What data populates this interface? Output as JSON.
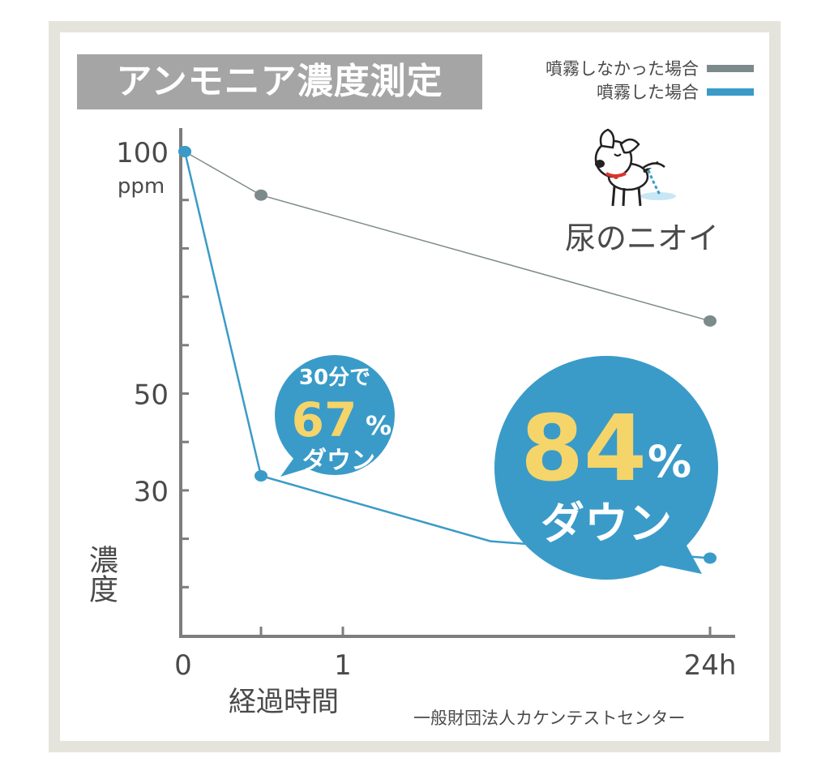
{
  "chart_data": {
    "type": "line",
    "title": "アンモニア濃度測定",
    "ylabel": "濃度",
    "xlabel": "経過時間",
    "source": "一般財団法人カケンテストセンター",
    "y_unit": "ppm",
    "ylim": [
      0,
      100
    ],
    "x_ticks": [
      "0",
      "1",
      "24h"
    ],
    "y_ticks": [
      "100",
      "50",
      "30"
    ],
    "series": [
      {
        "name": "噴霧しなかった場合",
        "color": "#7d8a8c",
        "points": [
          {
            "x": "0",
            "y": 100
          },
          {
            "x": "30分",
            "y": 91
          },
          {
            "x": "24h",
            "y": 65
          }
        ]
      },
      {
        "name": "噴霧した場合",
        "color": "#3a9bc8",
        "points": [
          {
            "x": "0",
            "y": 100
          },
          {
            "x": "30分",
            "y": 33
          },
          {
            "x": "24h",
            "y": 16
          }
        ]
      }
    ],
    "annotations": {
      "bubble_small": {
        "top": "30分で",
        "number": "67",
        "percent": "%",
        "bottom": "ダウン"
      },
      "bubble_large": {
        "number": "84",
        "percent": "%",
        "bottom": "ダウン"
      },
      "illustration_caption": "尿のニオイ"
    },
    "grid": false,
    "legend_position": "top-right"
  },
  "colors": {
    "accent_blue": "#3a9bc8",
    "gray_line": "#7d8a8c",
    "highlight_yellow": "#f5d46a",
    "title_bg": "#a5a5a5",
    "frame": "#e4e4dc"
  },
  "icons": [
    "dog-illustration"
  ]
}
